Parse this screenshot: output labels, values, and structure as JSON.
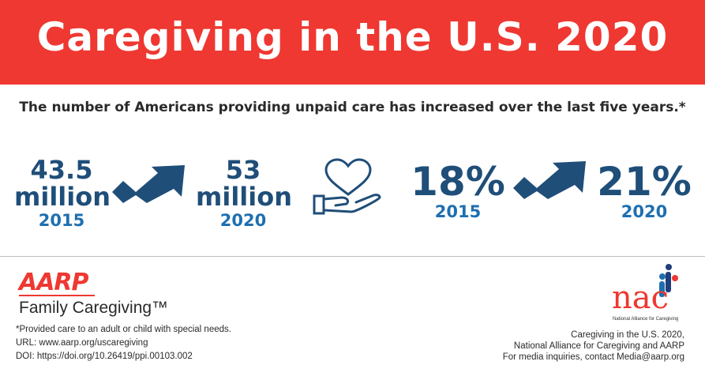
{
  "header": {
    "title": "Caregiving in the U.S. 2020",
    "bg_color": "#ee3831"
  },
  "subtitle": "The number of Americans providing unpaid care has increased over the last five years.*",
  "stats": {
    "count_2015": {
      "value": "43.5",
      "unit": "million",
      "year": "2015"
    },
    "count_2020": {
      "value": "53",
      "unit": "million",
      "year": "2020"
    },
    "pct_2015": {
      "value": "18%",
      "year": "2015"
    },
    "pct_2020": {
      "value": "21%",
      "year": "2020"
    }
  },
  "colors": {
    "dark_blue": "#1f4e79",
    "light_blue": "#1e6fb0",
    "red": "#ee3831"
  },
  "icons": {
    "trend_arrow": "trend-up-arrow-icon",
    "care": "heart-in-hand-icon"
  },
  "footer": {
    "aarp_logo": "AARP",
    "aarp_sub": "Family Caregiving™",
    "footnote": "*Provided care to an adult or child with special needs.",
    "url": "URL: www.aarp.org/uscaregiving",
    "doi": "DOI: https://doi.org/10.26419/ppi.00103.002",
    "nac_logo": "nac",
    "nac_tagline": "National Alliance for Caregiving",
    "source_1": "Caregiving in the U.S. 2020,",
    "source_2": "National Alliance for Caregiving and AARP",
    "media": "For media inquiries, contact Media@aarp.org"
  }
}
